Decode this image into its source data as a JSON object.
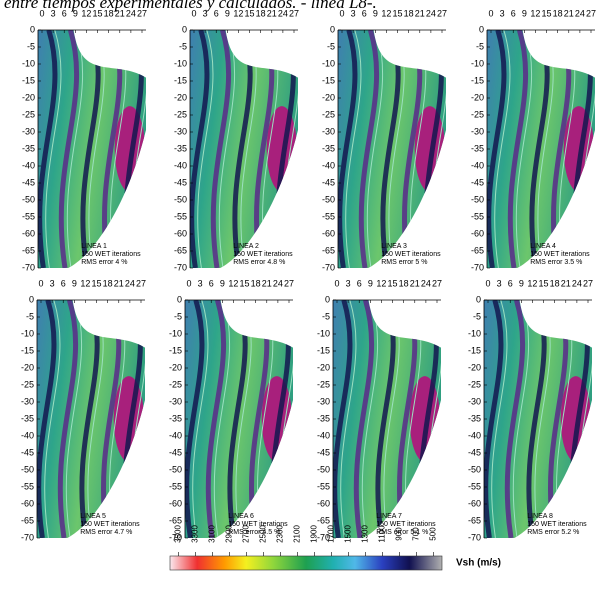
{
  "caption": "entre tiempos experimentales y calculados. - línea L8-.",
  "panels": [
    {
      "x_ticks": [
        "0",
        "3",
        "6",
        "9",
        "12",
        "15",
        "18",
        "21",
        "24",
        "27"
      ],
      "y_ticks": [
        "0",
        "-5",
        "-10",
        "-15",
        "-20",
        "-25",
        "-30",
        "-35",
        "-40",
        "-45",
        "-50",
        "-55",
        "-60",
        "-65",
        "-70"
      ],
      "label": "LINEA 1",
      "iterations": "150 WET iterations",
      "rms": "RMS error 4 %"
    },
    {
      "x_ticks": [
        "0",
        "3",
        "6",
        "9",
        "12",
        "15",
        "18",
        "21",
        "24",
        "27"
      ],
      "y_ticks": [
        "0",
        "-5",
        "-10",
        "-15",
        "-20",
        "-25",
        "-30",
        "-35",
        "-40",
        "-45",
        "-50",
        "-55",
        "-60",
        "-65",
        "-70"
      ],
      "label": "LINEA 2",
      "iterations": "150 WET iterations",
      "rms": "RMS error 4.8 %"
    },
    {
      "x_ticks": [
        "0",
        "3",
        "6",
        "9",
        "12",
        "15",
        "18",
        "21",
        "24",
        "27"
      ],
      "y_ticks": [
        "0",
        "-5",
        "-10",
        "-15",
        "-20",
        "-25",
        "-30",
        "-35",
        "-40",
        "-45",
        "-50",
        "-55",
        "-60",
        "-65",
        "-70"
      ],
      "label": "LINEA 3",
      "iterations": "150 WET iterations",
      "rms": "RMS error 5 %"
    },
    {
      "x_ticks": [
        "0",
        "3",
        "6",
        "9",
        "12",
        "15",
        "18",
        "21",
        "24",
        "27"
      ],
      "y_ticks": [
        "0",
        "-5",
        "-10",
        "-15",
        "-20",
        "-25",
        "-30",
        "-35",
        "-40",
        "-45",
        "-50",
        "-55",
        "-60",
        "-65",
        "-70"
      ],
      "label": "LINEA 4",
      "iterations": "150 WET iterations",
      "rms": "RMS error 3.5 %"
    },
    {
      "x_ticks": [
        "0",
        "3",
        "6",
        "9",
        "12",
        "15",
        "18",
        "21",
        "24",
        "27"
      ],
      "y_ticks": [
        "0",
        "-5",
        "-10",
        "-15",
        "-20",
        "-25",
        "-30",
        "-35",
        "-40",
        "-45",
        "-50",
        "-55",
        "-60",
        "-65",
        "-70"
      ],
      "label": "LINEA 5",
      "iterations": "150 WET iterations",
      "rms": "RMS error 4.7 %"
    },
    {
      "x_ticks": [
        "0",
        "3",
        "6",
        "9",
        "12",
        "15",
        "18",
        "21",
        "24",
        "27"
      ],
      "y_ticks": [
        "0",
        "-5",
        "-10",
        "-15",
        "-20",
        "-25",
        "-30",
        "-35",
        "-40",
        "-45",
        "-50",
        "-55",
        "-60",
        "-65",
        "-70"
      ],
      "label": "LINEA 6",
      "iterations": "150 WET iterations",
      "rms": "RMS error 4.5 %"
    },
    {
      "x_ticks": [
        "0",
        "3",
        "6",
        "9",
        "12",
        "15",
        "18",
        "21",
        "24",
        "27"
      ],
      "y_ticks": [
        "0",
        "-5",
        "-10",
        "-15",
        "-20",
        "-25",
        "-30",
        "-35",
        "-40",
        "-45",
        "-50",
        "-55",
        "-60",
        "-65",
        "-70"
      ],
      "label": "LINEA 7",
      "iterations": "150 WET iterations",
      "rms": "RMS error 5.1 %"
    },
    {
      "x_ticks": [
        "0",
        "3",
        "6",
        "9",
        "12",
        "15",
        "18",
        "21",
        "24",
        "27"
      ],
      "y_ticks": [
        "0",
        "-5",
        "-10",
        "-15",
        "-20",
        "-25",
        "-30",
        "-35",
        "-40",
        "-45",
        "-50",
        "-55",
        "-60",
        "-65",
        "-70"
      ],
      "label": "LINEA 8",
      "iterations": "150 WET iterations",
      "rms": "RMS error 5.2 %"
    }
  ],
  "colorbar": {
    "ticks": [
      "3500",
      "3300",
      "3100",
      "2900",
      "2700",
      "2500",
      "2300",
      "2100",
      "1900",
      "1700",
      "1500",
      "1300",
      "1100",
      "900",
      "700",
      "500"
    ],
    "label": "Vsh (m/s)"
  }
}
